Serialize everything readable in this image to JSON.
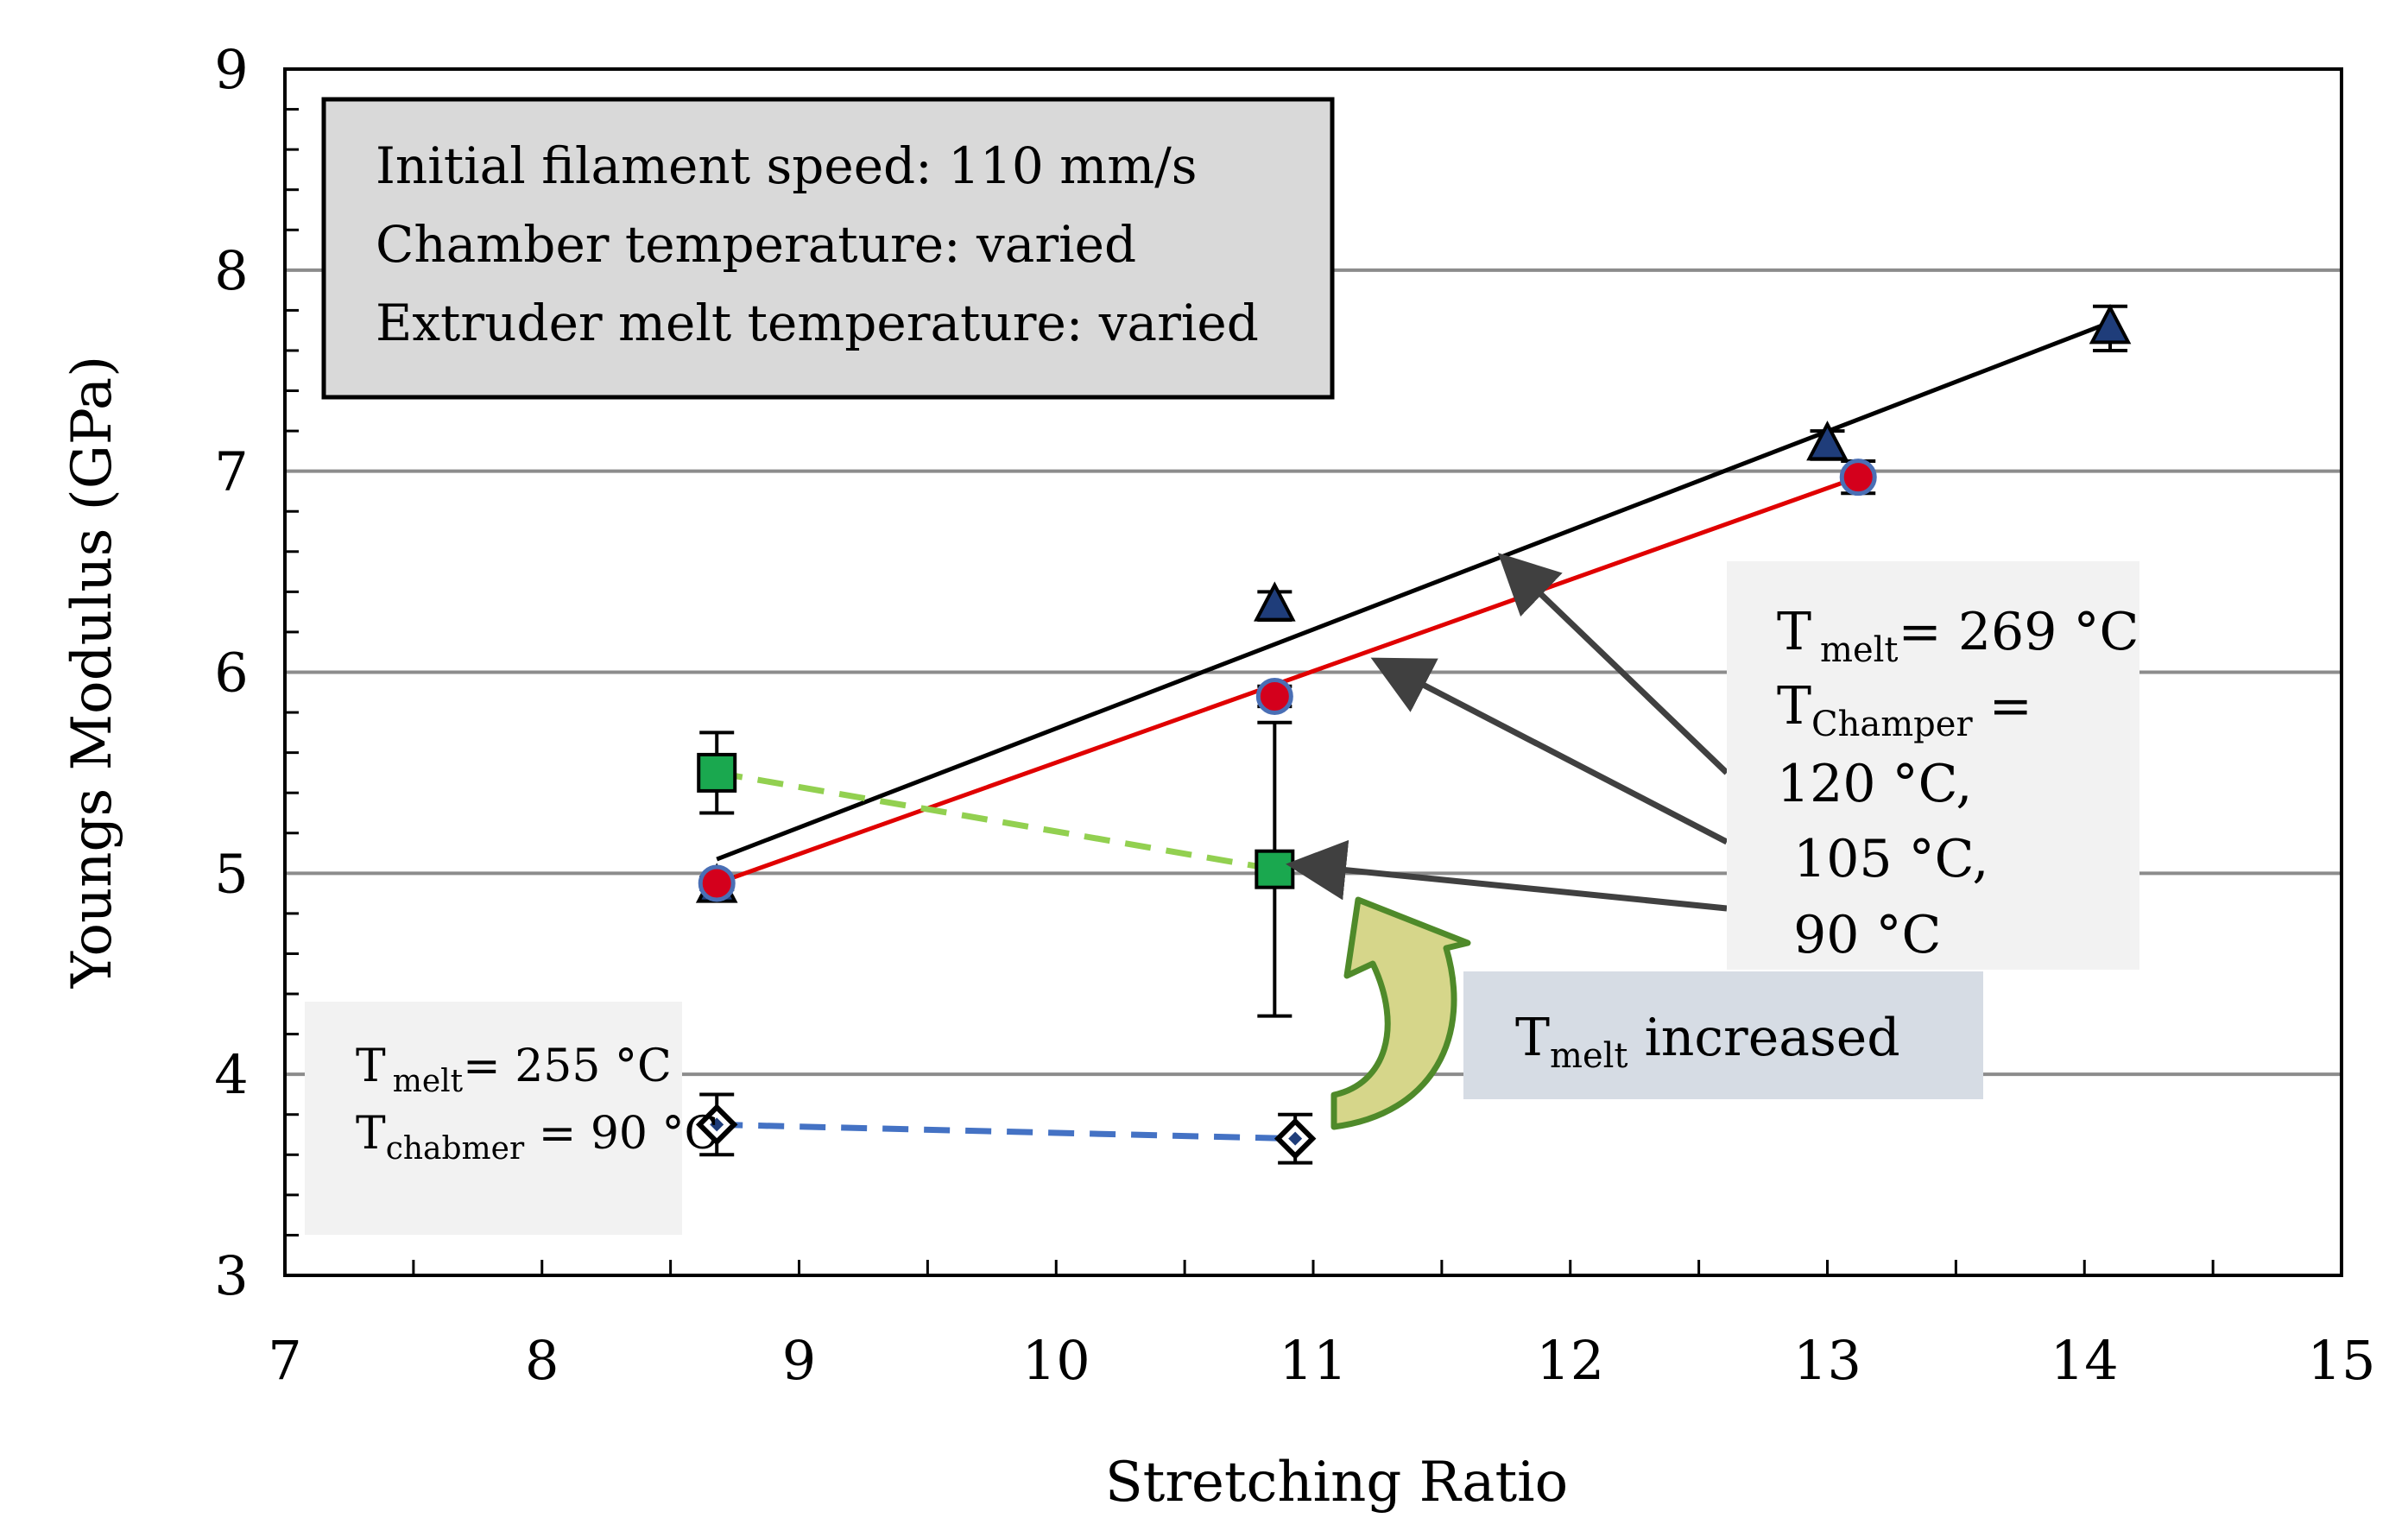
{
  "chart_data": {
    "type": "scatter",
    "xlabel": "Stretching Ratio",
    "ylabel": "Youngs Modulus (GPa)",
    "xlim": [
      7,
      15
    ],
    "ylim": [
      3,
      9
    ],
    "x_ticks": [
      7,
      8,
      9,
      10,
      11,
      12,
      13,
      14,
      15
    ],
    "y_ticks": [
      3,
      4,
      5,
      6,
      7,
      8,
      9
    ],
    "grid": "horizontal",
    "series": [
      {
        "marker": "triangle",
        "color": "#1f3d7a",
        "points": [
          {
            "x": 8.68,
            "y": 4.93,
            "err": 0.05
          },
          {
            "x": 10.85,
            "y": 6.33,
            "err": 0.07
          },
          {
            "x": 13.0,
            "y": 7.13,
            "err": 0.07
          },
          {
            "x": 14.1,
            "y": 7.71,
            "err": 0.11
          }
        ],
        "fit_line": {
          "x": [
            8.68,
            14.1
          ],
          "y": [
            5.07,
            7.74
          ],
          "color": "#000000",
          "dash": false
        }
      },
      {
        "marker": "circle",
        "color": "#d4001c",
        "points": [
          {
            "x": 8.68,
            "y": 4.95,
            "err": 0.03
          },
          {
            "x": 10.85,
            "y": 5.88,
            "err": 0.05
          },
          {
            "x": 13.12,
            "y": 6.97,
            "err": 0.08
          }
        ],
        "fit_line": {
          "x": [
            8.68,
            13.12
          ],
          "y": [
            4.95,
            6.97
          ],
          "color": "#e00000",
          "dash": false
        }
      },
      {
        "marker": "square",
        "color": "#1aa84f",
        "points": [
          {
            "x": 8.68,
            "y": 5.5,
            "err": 0.2
          },
          {
            "x": 10.85,
            "y": 5.02,
            "err": 0.73
          }
        ],
        "fit_line": {
          "x": [
            8.68,
            10.85
          ],
          "y": [
            5.5,
            5.02
          ],
          "color": "#92d050",
          "dash": true
        }
      },
      {
        "marker": "diamond",
        "color": "#1f3d7a",
        "points": [
          {
            "x": 8.68,
            "y": 3.75,
            "err": 0.15
          },
          {
            "x": 10.93,
            "y": 3.68,
            "err": 0.12
          }
        ],
        "fit_line": {
          "x": [
            8.68,
            10.93
          ],
          "y": [
            3.75,
            3.68
          ],
          "color": "#4472c4",
          "dash": true
        }
      }
    ],
    "annotations": {
      "info_box": [
        "Initial filament speed: 110 mm/s",
        "Chamber temperature: varied",
        "Extruder melt temperature: varied"
      ],
      "right_box": {
        "line1_T": "T",
        "line1_sub": "melt",
        "line1_rest": "= 269 °C",
        "line2_T": "T",
        "line2_sub": "Champer",
        "line2_rest": " =",
        "line3": "120 °C,",
        "line4": " 105 °C,",
        "line5": " 90 °C"
      },
      "left_box": {
        "line1_T": "T",
        "line1_sub": "melt",
        "line1_rest": "= 255 °C",
        "line2_T": "T",
        "line2_sub": "chabmer",
        "line2_rest": " = 90 °C"
      },
      "increased_box": {
        "T": "T",
        "sub": "melt",
        "rest": " increased"
      }
    }
  }
}
